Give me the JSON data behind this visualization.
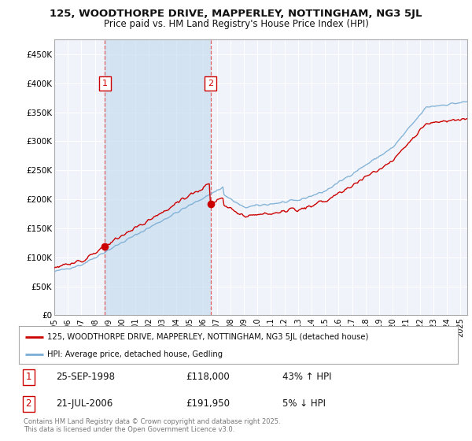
{
  "title_line1": "125, WOODTHORPE DRIVE, MAPPERLEY, NOTTINGHAM, NG3 5JL",
  "title_line2": "Price paid vs. HM Land Registry's House Price Index (HPI)",
  "ylabel_ticks": [
    "£0",
    "£50K",
    "£100K",
    "£150K",
    "£200K",
    "£250K",
    "£300K",
    "£350K",
    "£400K",
    "£450K"
  ],
  "ytick_values": [
    0,
    50000,
    100000,
    150000,
    200000,
    250000,
    300000,
    350000,
    400000,
    450000
  ],
  "ylim": [
    0,
    475000
  ],
  "xlim_start": 1995.0,
  "xlim_end": 2025.5,
  "background_color": "#dce8f5",
  "shading_color": "#dce8f5",
  "grid_color": "#ffffff",
  "red_line_color": "#cc0000",
  "blue_line_color": "#7aadd4",
  "sale1_date_label": "25-SEP-1998",
  "sale1_price": 118000,
  "sale1_price_label": "£118,000",
  "sale1_hpi_label": "43% ↑ HPI",
  "sale1_x": 1998.73,
  "sale2_date_label": "21-JUL-2006",
  "sale2_price": 191950,
  "sale2_price_label": "£191,950",
  "sale2_hpi_label": "5% ↓ HPI",
  "sale2_x": 2006.54,
  "legend_line1": "125, WOODTHORPE DRIVE, MAPPERLEY, NOTTINGHAM, NG3 5JL (detached house)",
  "legend_line2": "HPI: Average price, detached house, Gedling",
  "footer_text": "Contains HM Land Registry data © Crown copyright and database right 2025.\nThis data is licensed under the Open Government Licence v3.0.",
  "xtick_years": [
    1995,
    1996,
    1997,
    1998,
    1999,
    2000,
    2001,
    2002,
    2003,
    2004,
    2005,
    2006,
    2007,
    2008,
    2009,
    2010,
    2011,
    2012,
    2013,
    2014,
    2015,
    2016,
    2017,
    2018,
    2019,
    2020,
    2021,
    2022,
    2023,
    2024,
    2025
  ]
}
